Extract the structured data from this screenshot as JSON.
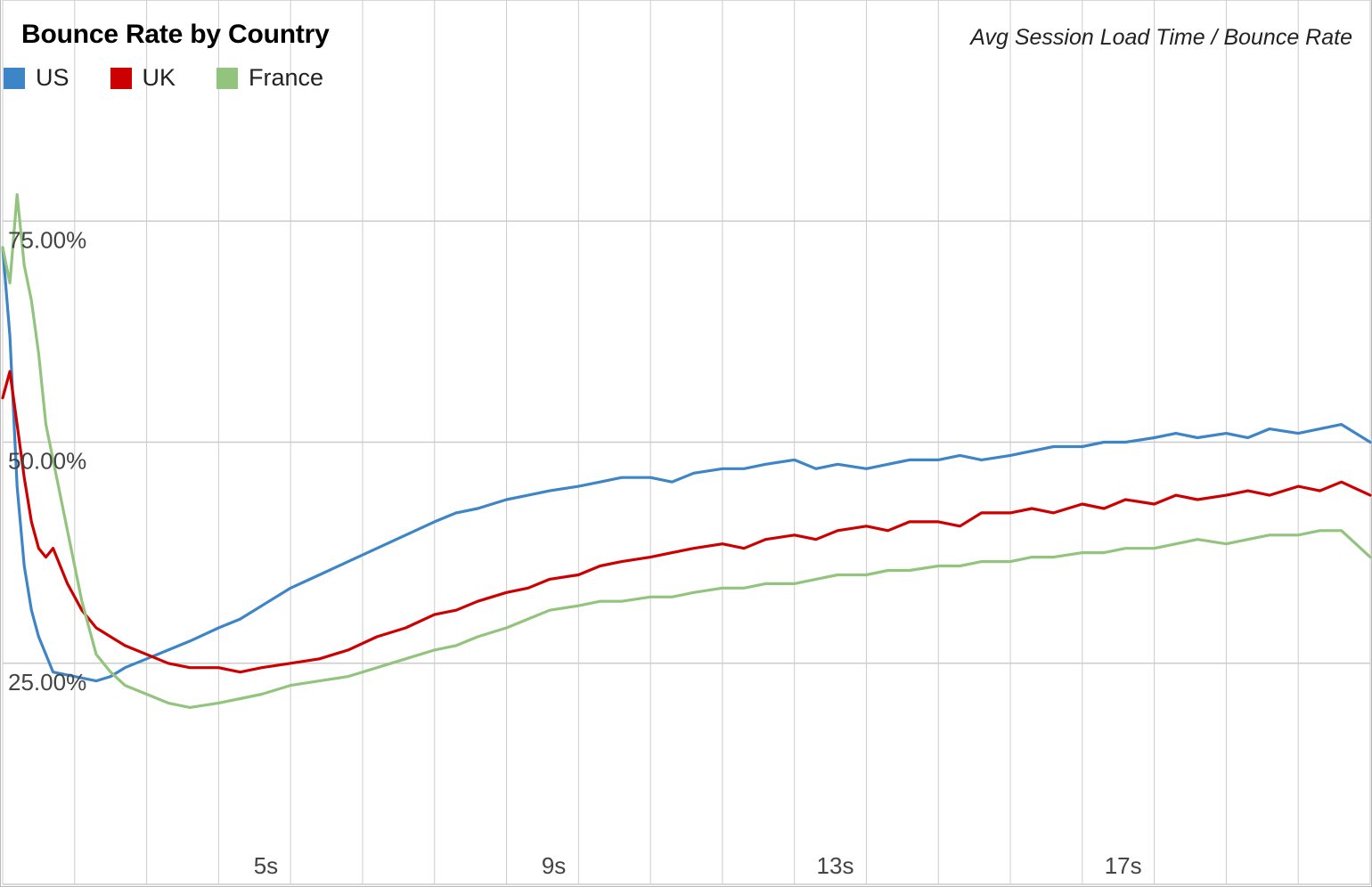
{
  "chart_data": {
    "type": "line",
    "title": "Bounce Rate by Country",
    "subtitle": "Avg Session Load Time / Bounce Rate",
    "xlabel": "",
    "ylabel": "",
    "x_unit": "s",
    "y_unit": "%",
    "xlim": [
      1.0,
      20.0
    ],
    "ylim": [
      0,
      100
    ],
    "x_ticks": [
      {
        "value": 5,
        "label": "5s"
      },
      {
        "value": 9,
        "label": "9s"
      },
      {
        "value": 13,
        "label": "13s"
      },
      {
        "value": 17,
        "label": "17s"
      }
    ],
    "y_ticks": [
      {
        "value": 25,
        "label": "25.00%"
      },
      {
        "value": 50,
        "label": "50.00%"
      },
      {
        "value": 75,
        "label": "75.00%"
      }
    ],
    "grid": true,
    "legend_position": "top-left",
    "series": [
      {
        "name": "US",
        "color": "#3d85c6",
        "points": [
          [
            1.0,
            72
          ],
          [
            1.1,
            62
          ],
          [
            1.2,
            45
          ],
          [
            1.3,
            36
          ],
          [
            1.4,
            31
          ],
          [
            1.5,
            28
          ],
          [
            1.6,
            26
          ],
          [
            1.7,
            24
          ],
          [
            2.3,
            23
          ],
          [
            2.5,
            23.5
          ],
          [
            2.7,
            24.5
          ],
          [
            3.0,
            25.5
          ],
          [
            3.3,
            26.5
          ],
          [
            3.6,
            27.5
          ],
          [
            4.0,
            29
          ],
          [
            4.3,
            30
          ],
          [
            4.7,
            32
          ],
          [
            5.0,
            33.5
          ],
          [
            5.4,
            35
          ],
          [
            5.8,
            36.5
          ],
          [
            6.2,
            38
          ],
          [
            6.6,
            39.5
          ],
          [
            7.0,
            41
          ],
          [
            7.3,
            42
          ],
          [
            7.6,
            42.5
          ],
          [
            8.0,
            43.5
          ],
          [
            8.3,
            44
          ],
          [
            8.6,
            44.5
          ],
          [
            9.0,
            45
          ],
          [
            9.3,
            45.5
          ],
          [
            9.6,
            46
          ],
          [
            10.0,
            46
          ],
          [
            10.3,
            45.5
          ],
          [
            10.6,
            46.5
          ],
          [
            11.0,
            47
          ],
          [
            11.3,
            47
          ],
          [
            11.6,
            47.5
          ],
          [
            12.0,
            48
          ],
          [
            12.3,
            47
          ],
          [
            12.6,
            47.5
          ],
          [
            13.0,
            47
          ],
          [
            13.3,
            47.5
          ],
          [
            13.6,
            48
          ],
          [
            14.0,
            48
          ],
          [
            14.3,
            48.5
          ],
          [
            14.6,
            48
          ],
          [
            15.0,
            48.5
          ],
          [
            15.3,
            49
          ],
          [
            15.6,
            49.5
          ],
          [
            16.0,
            49.5
          ],
          [
            16.3,
            50
          ],
          [
            16.6,
            50
          ],
          [
            17.0,
            50.5
          ],
          [
            17.3,
            51
          ],
          [
            17.6,
            50.5
          ],
          [
            18.0,
            51
          ],
          [
            18.3,
            50.5
          ],
          [
            18.6,
            51.5
          ],
          [
            19.0,
            51
          ],
          [
            19.3,
            51.5
          ],
          [
            19.6,
            52
          ],
          [
            20.0,
            50
          ]
        ]
      },
      {
        "name": "UK",
        "color": "#cc0000",
        "points": [
          [
            1.0,
            55
          ],
          [
            1.1,
            58
          ],
          [
            1.2,
            52
          ],
          [
            1.3,
            46
          ],
          [
            1.4,
            41
          ],
          [
            1.5,
            38
          ],
          [
            1.6,
            37
          ],
          [
            1.7,
            38
          ],
          [
            1.9,
            34
          ],
          [
            2.1,
            31
          ],
          [
            2.3,
            29
          ],
          [
            2.5,
            28
          ],
          [
            2.7,
            27
          ],
          [
            3.0,
            26
          ],
          [
            3.3,
            25
          ],
          [
            3.6,
            24.5
          ],
          [
            4.0,
            24.5
          ],
          [
            4.3,
            24
          ],
          [
            4.6,
            24.5
          ],
          [
            5.0,
            25
          ],
          [
            5.4,
            25.5
          ],
          [
            5.8,
            26.5
          ],
          [
            6.2,
            28
          ],
          [
            6.6,
            29
          ],
          [
            7.0,
            30.5
          ],
          [
            7.3,
            31
          ],
          [
            7.6,
            32
          ],
          [
            8.0,
            33
          ],
          [
            8.3,
            33.5
          ],
          [
            8.6,
            34.5
          ],
          [
            9.0,
            35
          ],
          [
            9.3,
            36
          ],
          [
            9.6,
            36.5
          ],
          [
            10.0,
            37
          ],
          [
            10.3,
            37.5
          ],
          [
            10.6,
            38
          ],
          [
            11.0,
            38.5
          ],
          [
            11.3,
            38
          ],
          [
            11.6,
            39
          ],
          [
            12.0,
            39.5
          ],
          [
            12.3,
            39
          ],
          [
            12.6,
            40
          ],
          [
            13.0,
            40.5
          ],
          [
            13.3,
            40
          ],
          [
            13.6,
            41
          ],
          [
            14.0,
            41
          ],
          [
            14.3,
            40.5
          ],
          [
            14.6,
            42
          ],
          [
            15.0,
            42
          ],
          [
            15.3,
            42.5
          ],
          [
            15.6,
            42
          ],
          [
            16.0,
            43
          ],
          [
            16.3,
            42.5
          ],
          [
            16.6,
            43.5
          ],
          [
            17.0,
            43
          ],
          [
            17.3,
            44
          ],
          [
            17.6,
            43.5
          ],
          [
            18.0,
            44
          ],
          [
            18.3,
            44.5
          ],
          [
            18.6,
            44
          ],
          [
            19.0,
            45
          ],
          [
            19.3,
            44.5
          ],
          [
            19.6,
            45.5
          ],
          [
            20.0,
            44
          ]
        ]
      },
      {
        "name": "France",
        "color": "#93c47d",
        "points": [
          [
            1.0,
            72
          ],
          [
            1.1,
            68
          ],
          [
            1.2,
            78
          ],
          [
            1.3,
            70
          ],
          [
            1.4,
            66
          ],
          [
            1.5,
            60
          ],
          [
            1.6,
            52
          ],
          [
            1.7,
            48
          ],
          [
            1.9,
            40
          ],
          [
            2.1,
            32
          ],
          [
            2.3,
            26
          ],
          [
            2.5,
            24
          ],
          [
            2.7,
            22.5
          ],
          [
            3.0,
            21.5
          ],
          [
            3.3,
            20.5
          ],
          [
            3.6,
            20
          ],
          [
            4.0,
            20.5
          ],
          [
            4.3,
            21
          ],
          [
            4.6,
            21.5
          ],
          [
            5.0,
            22.5
          ],
          [
            5.4,
            23
          ],
          [
            5.8,
            23.5
          ],
          [
            6.2,
            24.5
          ],
          [
            6.6,
            25.5
          ],
          [
            7.0,
            26.5
          ],
          [
            7.3,
            27
          ],
          [
            7.6,
            28
          ],
          [
            8.0,
            29
          ],
          [
            8.3,
            30
          ],
          [
            8.6,
            31
          ],
          [
            9.0,
            31.5
          ],
          [
            9.3,
            32
          ],
          [
            9.6,
            32
          ],
          [
            10.0,
            32.5
          ],
          [
            10.3,
            32.5
          ],
          [
            10.6,
            33
          ],
          [
            11.0,
            33.5
          ],
          [
            11.3,
            33.5
          ],
          [
            11.6,
            34
          ],
          [
            12.0,
            34
          ],
          [
            12.3,
            34.5
          ],
          [
            12.6,
            35
          ],
          [
            13.0,
            35
          ],
          [
            13.3,
            35.5
          ],
          [
            13.6,
            35.5
          ],
          [
            14.0,
            36
          ],
          [
            14.3,
            36
          ],
          [
            14.6,
            36.5
          ],
          [
            15.0,
            36.5
          ],
          [
            15.3,
            37
          ],
          [
            15.6,
            37
          ],
          [
            16.0,
            37.5
          ],
          [
            16.3,
            37.5
          ],
          [
            16.6,
            38
          ],
          [
            17.0,
            38
          ],
          [
            17.3,
            38.5
          ],
          [
            17.6,
            39
          ],
          [
            18.0,
            38.5
          ],
          [
            18.3,
            39
          ],
          [
            18.6,
            39.5
          ],
          [
            19.0,
            39.5
          ],
          [
            19.3,
            40
          ],
          [
            19.6,
            40
          ],
          [
            20.0,
            37
          ]
        ]
      }
    ]
  }
}
